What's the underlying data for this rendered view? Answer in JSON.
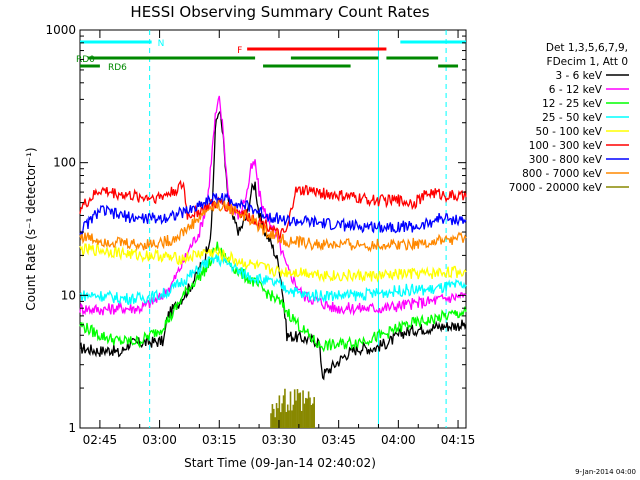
{
  "chart_data": {
    "type": "line",
    "title": "HESSI Observing Summary Count Rates",
    "xlabel": "Start Time (09-Jan-14 02:40:02)",
    "ylabel": "Count Rate (s⁻¹ detector⁻¹)",
    "yscale": "log",
    "ylim": [
      1,
      1000
    ],
    "xlim_minutes": [
      0,
      97
    ],
    "x_tick_minutes": [
      5,
      20,
      35,
      50,
      65,
      80,
      95
    ],
    "x_tick_labels": [
      "02:45",
      "03:00",
      "03:15",
      "03:30",
      "03:45",
      "04:00",
      "04:15"
    ],
    "y_tick_values": [
      1,
      10,
      100,
      1000
    ],
    "y_tick_labels": [
      "1",
      "10",
      "100",
      "1000"
    ],
    "legend_header": [
      "Det 1,3,5,6,7,9,",
      "FDecim 1, Att 0"
    ],
    "series": [
      {
        "name": "3 - 6 keV",
        "color": "#000000",
        "points": [
          [
            0,
            4
          ],
          [
            5,
            3.8
          ],
          [
            8,
            3.9
          ],
          [
            10,
            3.6
          ],
          [
            12,
            4.3
          ],
          [
            16,
            4.4
          ],
          [
            21,
            4.5
          ],
          [
            22,
            7
          ],
          [
            25,
            9
          ],
          [
            28,
            12
          ],
          [
            31,
            18
          ],
          [
            33,
            30
          ],
          [
            34,
            180
          ],
          [
            35,
            260
          ],
          [
            36,
            150
          ],
          [
            37,
            60
          ],
          [
            38,
            40
          ],
          [
            40,
            30
          ],
          [
            42,
            40
          ],
          [
            43,
            60
          ],
          [
            44,
            70
          ],
          [
            45,
            40
          ],
          [
            46,
            32
          ],
          [
            48,
            25
          ],
          [
            50,
            17
          ],
          [
            51,
            10
          ],
          [
            52,
            5
          ],
          [
            60,
            4.5
          ],
          [
            61,
            2.5
          ],
          [
            64,
            3.0
          ],
          [
            67,
            3.6
          ],
          [
            70,
            4
          ],
          [
            74,
            4
          ],
          [
            78,
            4.5
          ],
          [
            81,
            5.2
          ],
          [
            84,
            5.5
          ],
          [
            90,
            5.8
          ],
          [
            97,
            6
          ]
        ]
      },
      {
        "name": "6 - 12 keV",
        "color": "#ff00ff",
        "points": [
          [
            0,
            8
          ],
          [
            5,
            7.8
          ],
          [
            10,
            8
          ],
          [
            15,
            8
          ],
          [
            20,
            9.5
          ],
          [
            23,
            12
          ],
          [
            26,
            18
          ],
          [
            28,
            24
          ],
          [
            30,
            30
          ],
          [
            32,
            50
          ],
          [
            34,
            220
          ],
          [
            35,
            300
          ],
          [
            36,
            170
          ],
          [
            37,
            70
          ],
          [
            38,
            45
          ],
          [
            40,
            40
          ],
          [
            42,
            60
          ],
          [
            43,
            90
          ],
          [
            44,
            100
          ],
          [
            45,
            60
          ],
          [
            46,
            45
          ],
          [
            48,
            35
          ],
          [
            50,
            25
          ],
          [
            52,
            16
          ],
          [
            56,
            10
          ],
          [
            60,
            9
          ],
          [
            64,
            8
          ],
          [
            70,
            8
          ],
          [
            76,
            8
          ],
          [
            82,
            8.5
          ],
          [
            88,
            9
          ],
          [
            92,
            9.5
          ],
          [
            97,
            10
          ]
        ]
      },
      {
        "name": "12 - 25 keV",
        "color": "#00ff00",
        "points": [
          [
            0,
            6
          ],
          [
            5,
            5
          ],
          [
            10,
            4.5
          ],
          [
            15,
            4.5
          ],
          [
            20,
            5.5
          ],
          [
            23,
            7
          ],
          [
            26,
            10
          ],
          [
            29,
            13
          ],
          [
            31,
            15
          ],
          [
            33,
            18
          ],
          [
            34,
            24
          ],
          [
            36,
            20
          ],
          [
            38,
            17
          ],
          [
            40,
            15
          ],
          [
            43,
            13
          ],
          [
            46,
            11
          ],
          [
            50,
            9
          ],
          [
            53,
            7
          ],
          [
            56,
            5.5
          ],
          [
            60,
            4.2
          ],
          [
            64,
            4.2
          ],
          [
            70,
            4.5
          ],
          [
            76,
            5
          ],
          [
            82,
            6
          ],
          [
            88,
            6.5
          ],
          [
            92,
            7
          ],
          [
            97,
            7.5
          ]
        ]
      },
      {
        "name": "25 - 50 keV",
        "color": "#00ffff",
        "points": [
          [
            0,
            10
          ],
          [
            5,
            10
          ],
          [
            10,
            9.5
          ],
          [
            15,
            9.5
          ],
          [
            20,
            10
          ],
          [
            23,
            11
          ],
          [
            26,
            13
          ],
          [
            29,
            15
          ],
          [
            31,
            17
          ],
          [
            34,
            19
          ],
          [
            36,
            18
          ],
          [
            38,
            17
          ],
          [
            40,
            15
          ],
          [
            43,
            14
          ],
          [
            46,
            13
          ],
          [
            50,
            12
          ],
          [
            53,
            11
          ],
          [
            56,
            10
          ],
          [
            60,
            10
          ],
          [
            64,
            10
          ],
          [
            70,
            10
          ],
          [
            76,
            10.5
          ],
          [
            82,
            11
          ],
          [
            88,
            11
          ],
          [
            92,
            11.5
          ],
          [
            97,
            12
          ]
        ]
      },
      {
        "name": "50 - 100 keV",
        "color": "#ffff00",
        "points": [
          [
            0,
            22
          ],
          [
            5,
            22
          ],
          [
            10,
            21
          ],
          [
            15,
            20
          ],
          [
            20,
            20
          ],
          [
            23,
            19
          ],
          [
            26,
            19
          ],
          [
            29,
            20
          ],
          [
            31,
            21
          ],
          [
            34,
            21
          ],
          [
            36,
            20
          ],
          [
            38,
            19
          ],
          [
            40,
            18
          ],
          [
            43,
            17
          ],
          [
            46,
            16
          ],
          [
            50,
            15
          ],
          [
            53,
            15
          ],
          [
            56,
            15
          ],
          [
            60,
            14.5
          ],
          [
            64,
            14
          ],
          [
            70,
            14
          ],
          [
            76,
            14
          ],
          [
            82,
            14.5
          ],
          [
            88,
            14.5
          ],
          [
            92,
            15
          ],
          [
            97,
            15
          ]
        ]
      },
      {
        "name": "100 - 300 keV",
        "color": "#ff0000",
        "points": [
          [
            0,
            45
          ],
          [
            5,
            62
          ],
          [
            10,
            58
          ],
          [
            15,
            55
          ],
          [
            20,
            55
          ],
          [
            23,
            60
          ],
          [
            26,
            68
          ],
          [
            27,
            40
          ],
          [
            29,
            42
          ],
          [
            31,
            45
          ],
          [
            33,
            48
          ],
          [
            35,
            50
          ],
          [
            37,
            47
          ],
          [
            39,
            44
          ],
          [
            42,
            40
          ],
          [
            45,
            36
          ],
          [
            48,
            33
          ],
          [
            50,
            28
          ],
          [
            52,
            30
          ],
          [
            54,
            60
          ],
          [
            57,
            62
          ],
          [
            62,
            58
          ],
          [
            68,
            55
          ],
          [
            74,
            52
          ],
          [
            80,
            52
          ],
          [
            84,
            50
          ],
          [
            88,
            60
          ],
          [
            92,
            57
          ],
          [
            97,
            55
          ]
        ]
      },
      {
        "name": "300 - 800 keV",
        "color": "#0000ff",
        "points": [
          [
            0,
            30
          ],
          [
            5,
            44
          ],
          [
            10,
            40
          ],
          [
            15,
            38
          ],
          [
            20,
            38
          ],
          [
            23,
            40
          ],
          [
            26,
            42
          ],
          [
            29,
            46
          ],
          [
            32,
            52
          ],
          [
            35,
            55
          ],
          [
            38,
            52
          ],
          [
            41,
            48
          ],
          [
            44,
            44
          ],
          [
            47,
            40
          ],
          [
            50,
            38
          ],
          [
            53,
            36
          ],
          [
            56,
            36
          ],
          [
            60,
            35
          ],
          [
            64,
            34
          ],
          [
            70,
            33
          ],
          [
            76,
            33
          ],
          [
            82,
            33
          ],
          [
            86,
            33
          ],
          [
            90,
            38
          ],
          [
            97,
            37
          ]
        ]
      },
      {
        "name": "800 - 7000 keV",
        "color": "#ff8800",
        "points": [
          [
            0,
            28
          ],
          [
            5,
            26
          ],
          [
            10,
            25
          ],
          [
            15,
            24
          ],
          [
            20,
            25
          ],
          [
            23,
            26
          ],
          [
            26,
            30
          ],
          [
            29,
            36
          ],
          [
            32,
            44
          ],
          [
            35,
            48
          ],
          [
            38,
            45
          ],
          [
            41,
            40
          ],
          [
            44,
            35
          ],
          [
            47,
            30
          ],
          [
            50,
            27
          ],
          [
            53,
            25
          ],
          [
            56,
            25
          ],
          [
            60,
            24
          ],
          [
            64,
            24
          ],
          [
            70,
            24
          ],
          [
            76,
            24
          ],
          [
            82,
            24.5
          ],
          [
            88,
            25
          ],
          [
            92,
            26
          ],
          [
            97,
            27
          ]
        ]
      },
      {
        "name": "7000 - 20000 keV",
        "color": "#888800",
        "points": []
      }
    ],
    "flag_bars": [
      {
        "label": "N",
        "color": "#00ffff",
        "segments": [
          [
            0,
            18
          ],
          [
            80.5,
            97
          ]
        ]
      },
      {
        "label": "F",
        "color": "#ff0000",
        "segments": [
          [
            42,
            77
          ]
        ]
      },
      {
        "label": "RD0",
        "color": "#008800",
        "segments": [
          [
            2,
            44
          ],
          [
            53,
            75
          ],
          [
            77,
            90
          ]
        ]
      },
      {
        "label": "RD6",
        "color": "#008800",
        "segments": [
          [
            0,
            5
          ],
          [
            46,
            68
          ],
          [
            90,
            95
          ]
        ]
      }
    ],
    "saa_interval_minutes": [
      48,
      59
    ],
    "vertical_markers": [
      {
        "minute": 17.5,
        "color": "#00ffff",
        "style": "dashed"
      },
      {
        "minute": 75,
        "color": "#00ffff",
        "style": "solid"
      },
      {
        "minute": 92,
        "color": "#00ffff",
        "style": "dashed"
      }
    ]
  },
  "footer_timestamp": "9-Jan-2014 04:00"
}
